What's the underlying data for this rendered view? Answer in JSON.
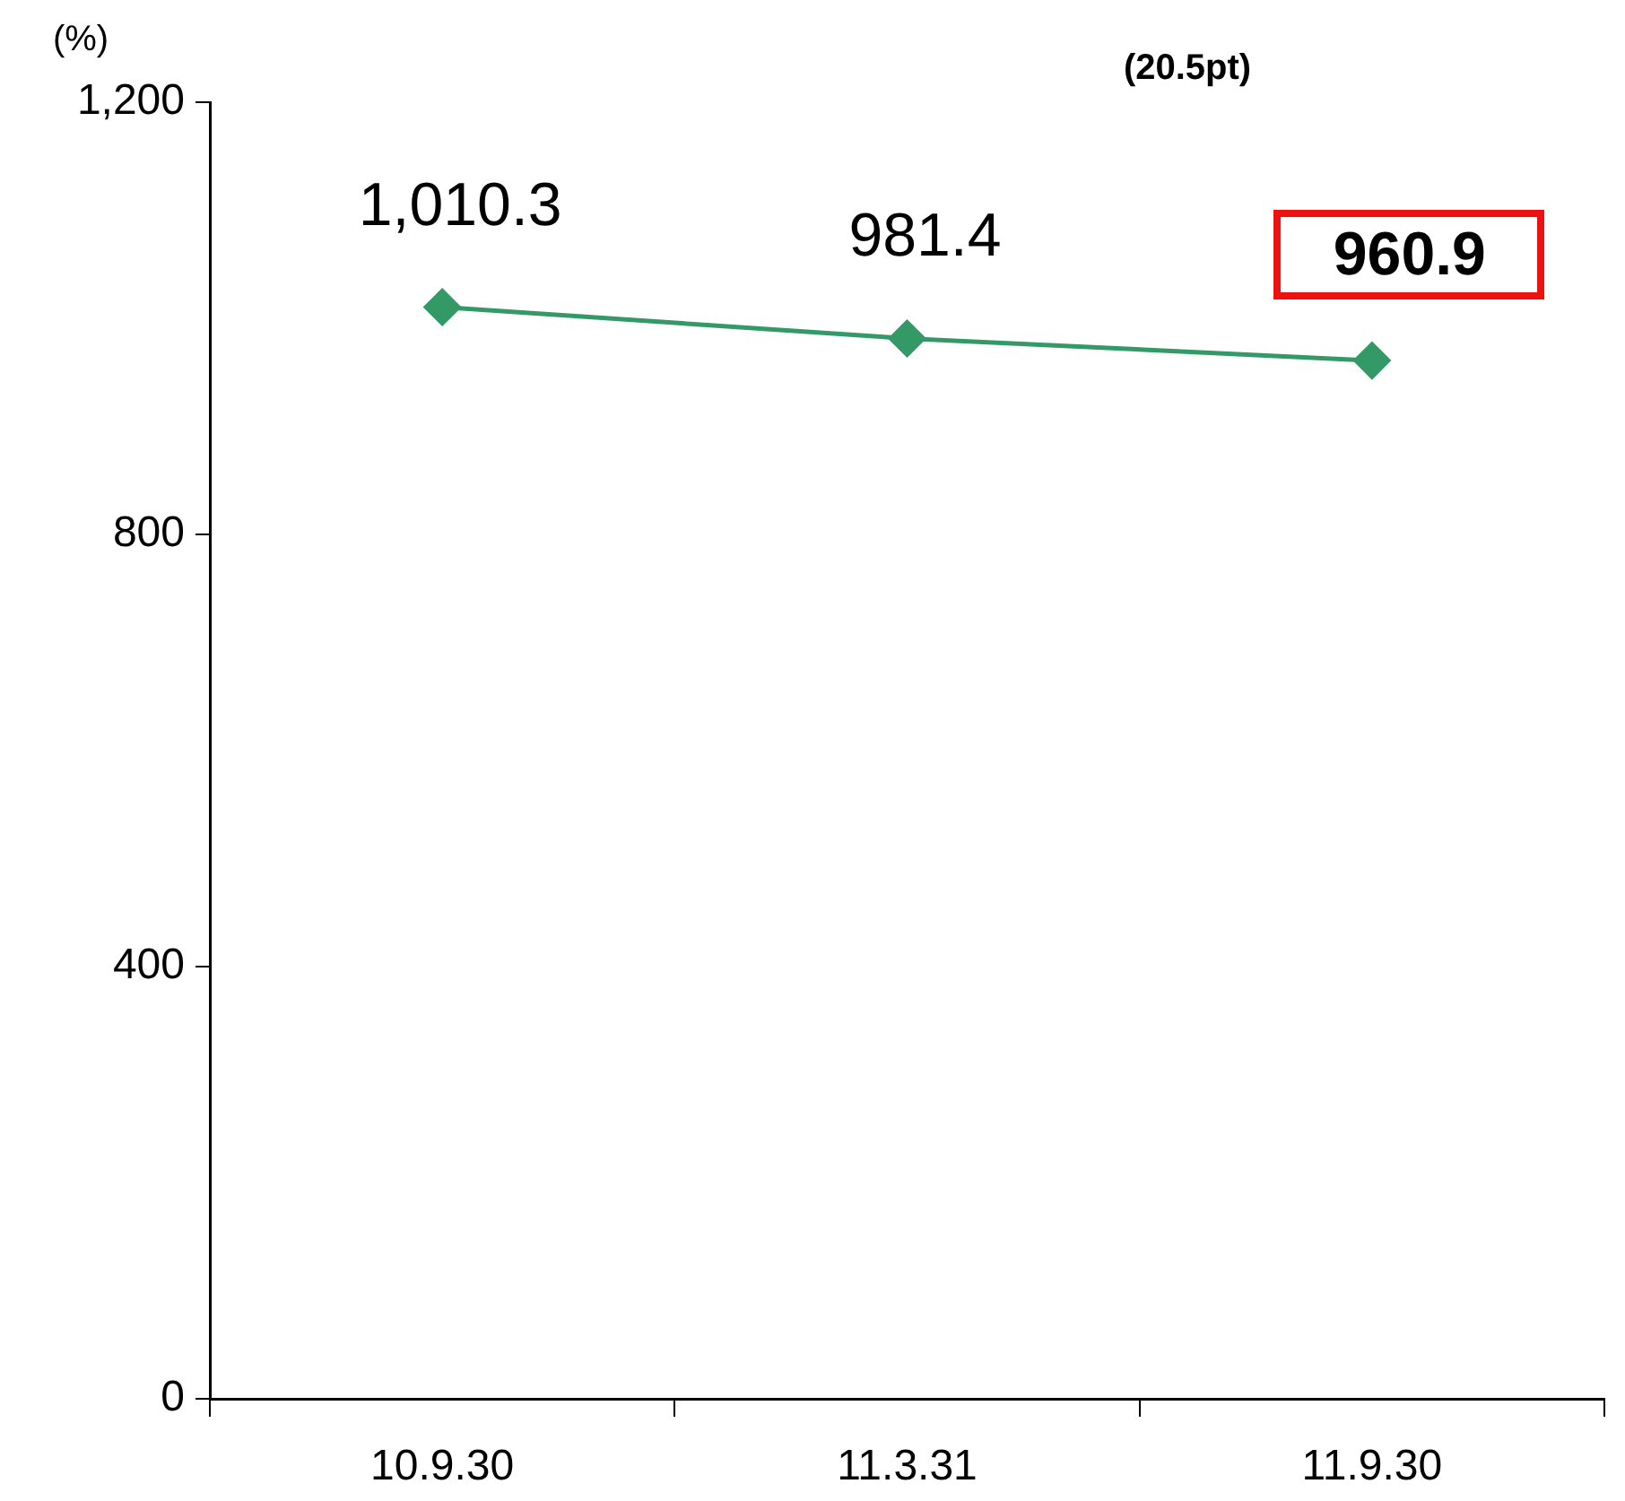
{
  "chart_data": {
    "type": "line",
    "ylabel": "(%)",
    "annotations": [
      "(20.5pt)"
    ],
    "categories": [
      "10.9.30",
      "11.3.31",
      "11.9.30"
    ],
    "series": [
      {
        "color": "#339966",
        "values": [
          1010.3,
          981.4,
          960.9
        ],
        "value_labels": [
          "1,010.3",
          "981.4",
          "960.9"
        ]
      }
    ],
    "ylim": [
      0,
      1200
    ],
    "yticks": [
      {
        "value": 0,
        "label": "0"
      },
      {
        "value": 400,
        "label": "400"
      },
      {
        "value": 800,
        "label": "800"
      },
      {
        "value": 1200,
        "label": "1,200"
      }
    ],
    "grid": false,
    "legend": false,
    "marker": "diamond",
    "line_style": "solid"
  }
}
